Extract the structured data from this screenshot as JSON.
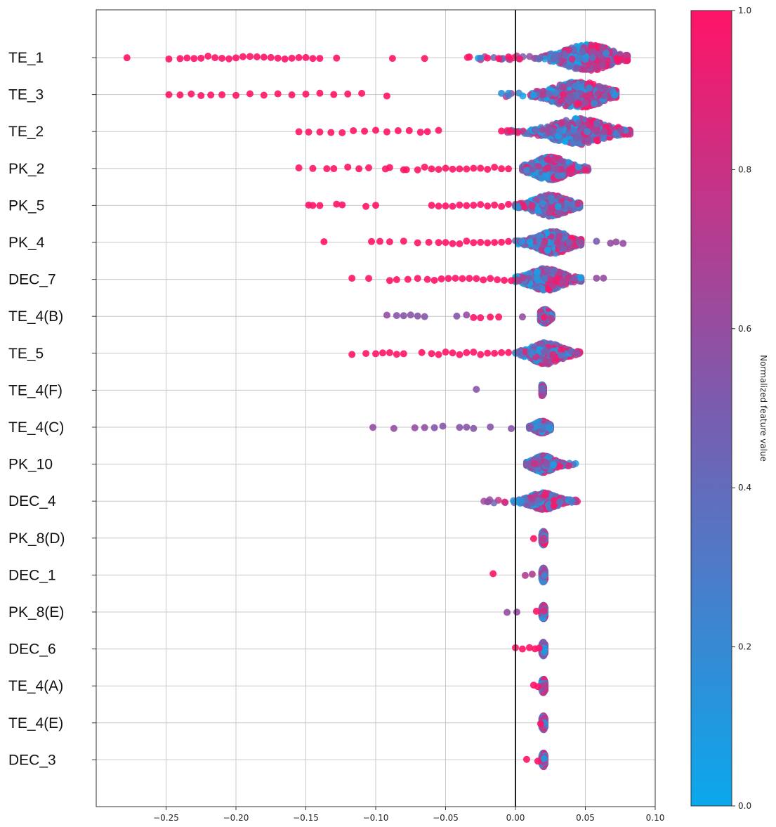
{
  "chart_data": {
    "type": "scatter",
    "subtype": "beeswarm",
    "title": "",
    "xlabel": "",
    "ylabel": "",
    "xlim": [
      -0.3,
      0.1
    ],
    "x_ticks": [
      -0.25,
      -0.2,
      -0.15,
      -0.1,
      -0.05,
      0.0,
      0.05,
      0.1
    ],
    "x_tick_labels": [
      "−0.25",
      "−0.20",
      "−0.15",
      "−0.10",
      "−0.05",
      "0.00",
      "0.05",
      "0.10"
    ],
    "grid": true,
    "zero_line": 0.0,
    "colors": {
      "low": "#0aa8ec",
      "mid": "#7a5caf",
      "high": "#ff1467",
      "axis": "#333333",
      "grid": "#c8c8c8"
    },
    "colorbar": {
      "label": "Normalized feature value",
      "range": [
        0.0,
        1.0
      ],
      "ticks": [
        0.0,
        0.2,
        0.4,
        0.6,
        0.8,
        1.0
      ],
      "tick_labels": [
        "0.0",
        "0.2",
        "0.4",
        "0.6",
        "0.8",
        "1.0"
      ]
    },
    "features": [
      {
        "name": "TE_1",
        "center": 0.052,
        "spread": 0.014,
        "height": 0.85,
        "range": [
          -0.035,
          0.08
        ],
        "tails": [
          [
            -0.278,
            1
          ],
          [
            -0.248,
            1
          ],
          [
            -0.24,
            1
          ],
          [
            -0.235,
            1
          ],
          [
            -0.23,
            1
          ],
          [
            -0.225,
            1
          ],
          [
            -0.22,
            1
          ],
          [
            -0.215,
            1
          ],
          [
            -0.21,
            1
          ],
          [
            -0.205,
            1
          ],
          [
            -0.2,
            1
          ],
          [
            -0.195,
            1
          ],
          [
            -0.19,
            1
          ],
          [
            -0.185,
            1
          ],
          [
            -0.18,
            1
          ],
          [
            -0.175,
            1
          ],
          [
            -0.17,
            1
          ],
          [
            -0.165,
            1
          ],
          [
            -0.16,
            1
          ],
          [
            -0.155,
            1
          ],
          [
            -0.15,
            1
          ],
          [
            -0.145,
            1
          ],
          [
            -0.14,
            1
          ],
          [
            -0.128,
            1
          ],
          [
            -0.088,
            1
          ],
          [
            -0.065,
            1
          ],
          [
            -0.033,
            1
          ],
          [
            -0.025,
            0.2
          ],
          [
            -0.02,
            1
          ],
          [
            -0.012,
            1
          ],
          [
            -0.005,
            1
          ],
          [
            0.003,
            1
          ]
        ]
      },
      {
        "name": "TE_3",
        "center": 0.045,
        "spread": 0.015,
        "height": 0.85,
        "range": [
          -0.01,
          0.072
        ],
        "tails": [
          [
            -0.248,
            1
          ],
          [
            -0.24,
            1
          ],
          [
            -0.232,
            1
          ],
          [
            -0.225,
            1
          ],
          [
            -0.218,
            1
          ],
          [
            -0.21,
            1
          ],
          [
            -0.2,
            1
          ],
          [
            -0.19,
            1
          ],
          [
            -0.18,
            1
          ],
          [
            -0.17,
            1
          ],
          [
            -0.16,
            1
          ],
          [
            -0.15,
            1
          ],
          [
            -0.14,
            1
          ],
          [
            -0.13,
            1
          ],
          [
            -0.12,
            1
          ],
          [
            -0.11,
            1
          ],
          [
            -0.092,
            1
          ],
          [
            -0.01,
            0.15
          ]
        ]
      },
      {
        "name": "TE_2",
        "center": 0.045,
        "spread": 0.016,
        "height": 0.85,
        "range": [
          -0.01,
          0.082
        ],
        "tails": [
          [
            -0.155,
            1
          ],
          [
            -0.148,
            1
          ],
          [
            -0.14,
            1
          ],
          [
            -0.132,
            1
          ],
          [
            -0.124,
            1
          ],
          [
            -0.116,
            1
          ],
          [
            -0.108,
            1
          ],
          [
            -0.1,
            1
          ],
          [
            -0.092,
            1
          ],
          [
            -0.084,
            1
          ],
          [
            -0.076,
            1
          ],
          [
            -0.068,
            1
          ],
          [
            -0.063,
            1
          ],
          [
            -0.055,
            1
          ],
          [
            -0.01,
            1
          ],
          [
            -0.004,
            1
          ]
        ]
      },
      {
        "name": "PK_2",
        "center": 0.025,
        "spread": 0.01,
        "height": 0.75,
        "range": [
          0.005,
          0.052
        ],
        "tails": [
          [
            -0.155,
            1
          ],
          [
            -0.145,
            1
          ],
          [
            -0.135,
            1
          ],
          [
            -0.13,
            1
          ],
          [
            -0.12,
            1
          ],
          [
            -0.112,
            1
          ],
          [
            -0.105,
            1
          ],
          [
            -0.093,
            1
          ],
          [
            -0.09,
            1
          ],
          [
            -0.08,
            1
          ],
          [
            -0.078,
            1
          ],
          [
            -0.07,
            1
          ],
          [
            -0.065,
            1
          ],
          [
            -0.06,
            1
          ],
          [
            -0.055,
            1
          ],
          [
            -0.05,
            1
          ],
          [
            -0.045,
            1
          ],
          [
            -0.04,
            1
          ],
          [
            -0.035,
            1
          ],
          [
            -0.03,
            1
          ],
          [
            -0.025,
            1
          ],
          [
            -0.02,
            1
          ],
          [
            -0.015,
            1
          ],
          [
            -0.01,
            1
          ],
          [
            -0.005,
            1
          ]
        ]
      },
      {
        "name": "PK_5",
        "center": 0.025,
        "spread": 0.01,
        "height": 0.7,
        "range": [
          0.0,
          0.046
        ],
        "tails": [
          [
            -0.148,
            1
          ],
          [
            -0.145,
            1
          ],
          [
            -0.14,
            1
          ],
          [
            -0.128,
            1
          ],
          [
            -0.124,
            1
          ],
          [
            -0.107,
            1
          ],
          [
            -0.1,
            1
          ],
          [
            -0.06,
            1
          ],
          [
            -0.055,
            1
          ],
          [
            -0.05,
            1
          ],
          [
            -0.045,
            1
          ],
          [
            -0.04,
            1
          ],
          [
            -0.035,
            1
          ],
          [
            -0.03,
            1
          ],
          [
            -0.025,
            1
          ],
          [
            -0.02,
            1
          ],
          [
            -0.015,
            1
          ],
          [
            -0.01,
            1
          ],
          [
            -0.005,
            1
          ]
        ]
      },
      {
        "name": "PK_4",
        "center": 0.027,
        "spread": 0.01,
        "height": 0.72,
        "range": [
          0.0,
          0.047
        ],
        "tails": [
          [
            -0.137,
            1
          ],
          [
            -0.103,
            1
          ],
          [
            -0.097,
            1
          ],
          [
            -0.09,
            1
          ],
          [
            -0.08,
            1
          ],
          [
            -0.07,
            1
          ],
          [
            -0.062,
            1
          ],
          [
            -0.055,
            1
          ],
          [
            -0.05,
            1
          ],
          [
            -0.045,
            1
          ],
          [
            -0.04,
            1
          ],
          [
            -0.035,
            1
          ],
          [
            -0.03,
            1
          ],
          [
            -0.025,
            1
          ],
          [
            -0.02,
            1
          ],
          [
            -0.015,
            1
          ],
          [
            -0.01,
            1
          ],
          [
            -0.005,
            1
          ],
          [
            0.058,
            0.5
          ],
          [
            0.068,
            0.6
          ],
          [
            0.072,
            0.6
          ],
          [
            0.077,
            0.6
          ]
        ]
      },
      {
        "name": "DEC_7",
        "center": 0.022,
        "spread": 0.01,
        "height": 0.72,
        "range": [
          0.0,
          0.047
        ],
        "tails": [
          [
            -0.117,
            1
          ],
          [
            -0.105,
            1
          ],
          [
            -0.09,
            1
          ],
          [
            -0.085,
            1
          ],
          [
            -0.077,
            1
          ],
          [
            -0.07,
            1
          ],
          [
            -0.063,
            1
          ],
          [
            -0.058,
            1
          ],
          [
            -0.053,
            1
          ],
          [
            -0.048,
            1
          ],
          [
            -0.043,
            1
          ],
          [
            -0.038,
            1
          ],
          [
            -0.033,
            1
          ],
          [
            -0.028,
            1
          ],
          [
            -0.023,
            1
          ],
          [
            -0.018,
            1
          ],
          [
            -0.013,
            1
          ],
          [
            -0.008,
            1
          ],
          [
            -0.003,
            1
          ],
          [
            0.058,
            0.6
          ],
          [
            0.063,
            0.6
          ]
        ]
      },
      {
        "name": "TE_4(B)",
        "center": 0.021,
        "spread": 0.003,
        "height": 0.45,
        "range": [
          0.018,
          0.026
        ],
        "tails": [
          [
            -0.092,
            0.6
          ],
          [
            -0.085,
            0.55
          ],
          [
            -0.08,
            0.55
          ],
          [
            -0.075,
            0.55
          ],
          [
            -0.07,
            0.55
          ],
          [
            -0.065,
            0.55
          ],
          [
            -0.042,
            0.55
          ],
          [
            -0.035,
            0.6
          ],
          [
            -0.03,
            1
          ],
          [
            -0.025,
            1
          ],
          [
            -0.018,
            1
          ],
          [
            -0.012,
            1
          ],
          [
            0.005,
            0.6
          ]
        ]
      },
      {
        "name": "TE_5",
        "center": 0.022,
        "spread": 0.009,
        "height": 0.7,
        "range": [
          0.0,
          0.046
        ],
        "tails": [
          [
            -0.117,
            1
          ],
          [
            -0.107,
            1
          ],
          [
            -0.1,
            1
          ],
          [
            -0.095,
            1
          ],
          [
            -0.09,
            1
          ],
          [
            -0.085,
            1
          ],
          [
            -0.08,
            1
          ],
          [
            -0.067,
            1
          ],
          [
            -0.06,
            1
          ],
          [
            -0.055,
            1
          ],
          [
            -0.05,
            1
          ],
          [
            -0.045,
            1
          ],
          [
            -0.04,
            1
          ],
          [
            -0.035,
            1
          ],
          [
            -0.03,
            1
          ],
          [
            -0.025,
            1
          ],
          [
            -0.02,
            1
          ],
          [
            -0.015,
            1
          ],
          [
            -0.01,
            1
          ],
          [
            -0.005,
            1
          ]
        ]
      },
      {
        "name": "TE_4(F)",
        "center": 0.019,
        "spread": 0.001,
        "height": 0.35,
        "range": [
          0.019,
          0.02
        ],
        "tails": [
          [
            -0.028,
            0.55
          ]
        ]
      },
      {
        "name": "TE_4(C)",
        "center": 0.019,
        "spread": 0.004,
        "height": 0.4,
        "range": [
          0.01,
          0.025
        ],
        "tails": [
          [
            -0.102,
            0.6
          ],
          [
            -0.087,
            0.6
          ],
          [
            -0.072,
            0.6
          ],
          [
            -0.065,
            0.6
          ],
          [
            -0.058,
            0.55
          ],
          [
            -0.052,
            0.55
          ],
          [
            -0.04,
            0.55
          ],
          [
            -0.035,
            0.55
          ],
          [
            -0.03,
            0.55
          ],
          [
            -0.018,
            0.55
          ],
          [
            -0.003,
            0.55
          ]
        ]
      },
      {
        "name": "PK_10",
        "center": 0.02,
        "spread": 0.006,
        "height": 0.55,
        "range": [
          0.008,
          0.044
        ],
        "tails": []
      },
      {
        "name": "DEC_4",
        "center": 0.02,
        "spread": 0.008,
        "height": 0.55,
        "range": [
          -0.027,
          0.052
        ],
        "tails": []
      },
      {
        "name": "PK_8(D)",
        "center": 0.02,
        "spread": 0.001,
        "height": 0.45,
        "range": [
          0.019,
          0.021
        ],
        "tails": [
          [
            0.013,
            1
          ]
        ]
      },
      {
        "name": "DEC_1",
        "center": 0.02,
        "spread": 0.001,
        "height": 0.45,
        "range": [
          0.019,
          0.021
        ],
        "tails": [
          [
            -0.016,
            1
          ],
          [
            0.007,
            0.7
          ],
          [
            0.012,
            0.7
          ]
        ]
      },
      {
        "name": "PK_8(E)",
        "center": 0.02,
        "spread": 0.001,
        "height": 0.45,
        "range": [
          0.019,
          0.021
        ],
        "tails": [
          [
            -0.006,
            0.6
          ],
          [
            0.001,
            0.6
          ],
          [
            0.015,
            1
          ]
        ]
      },
      {
        "name": "DEC_6",
        "center": 0.02,
        "spread": 0.001,
        "height": 0.45,
        "range": [
          0.019,
          0.021
        ],
        "tails": [
          [
            0.0,
            1
          ],
          [
            0.005,
            1
          ],
          [
            0.01,
            1
          ],
          [
            0.014,
            1
          ],
          [
            0.017,
            1
          ]
        ]
      },
      {
        "name": "TE_4(A)",
        "center": 0.02,
        "spread": 0.001,
        "height": 0.45,
        "range": [
          0.019,
          0.021
        ],
        "tails": [
          [
            0.013,
            1
          ],
          [
            0.016,
            1
          ]
        ]
      },
      {
        "name": "TE_4(E)",
        "center": 0.02,
        "spread": 0.001,
        "height": 0.45,
        "range": [
          0.019,
          0.021
        ],
        "tails": [
          [
            0.018,
            1
          ]
        ]
      },
      {
        "name": "DEC_3",
        "center": 0.02,
        "spread": 0.001,
        "height": 0.45,
        "range": [
          0.019,
          0.021
        ],
        "tails": [
          [
            0.008,
            1
          ],
          [
            0.016,
            1
          ]
        ]
      }
    ]
  }
}
